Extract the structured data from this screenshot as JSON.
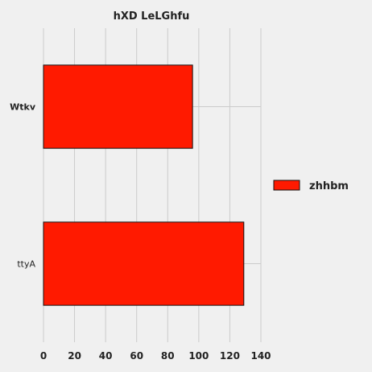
{
  "chart_data": {
    "type": "bar",
    "orientation": "horizontal",
    "title": "hXD LeLGhfu",
    "xlabel": "",
    "ylabel": "",
    "categories": [
      "Wtkv",
      "ttyA"
    ],
    "series": [
      {
        "name": "zhhbm",
        "values": [
          96,
          129
        ]
      }
    ],
    "xlim": [
      0,
      140
    ],
    "xticks": [
      "0",
      "20",
      "40",
      "60",
      "80",
      "100",
      "120",
      "140"
    ],
    "grid": true,
    "legend_position": "right",
    "colors": {
      "bar_fill": "#ff1a00",
      "bar_edge": "#111111",
      "background": "#f0f0f0",
      "grid": "#cbcbcb"
    }
  }
}
